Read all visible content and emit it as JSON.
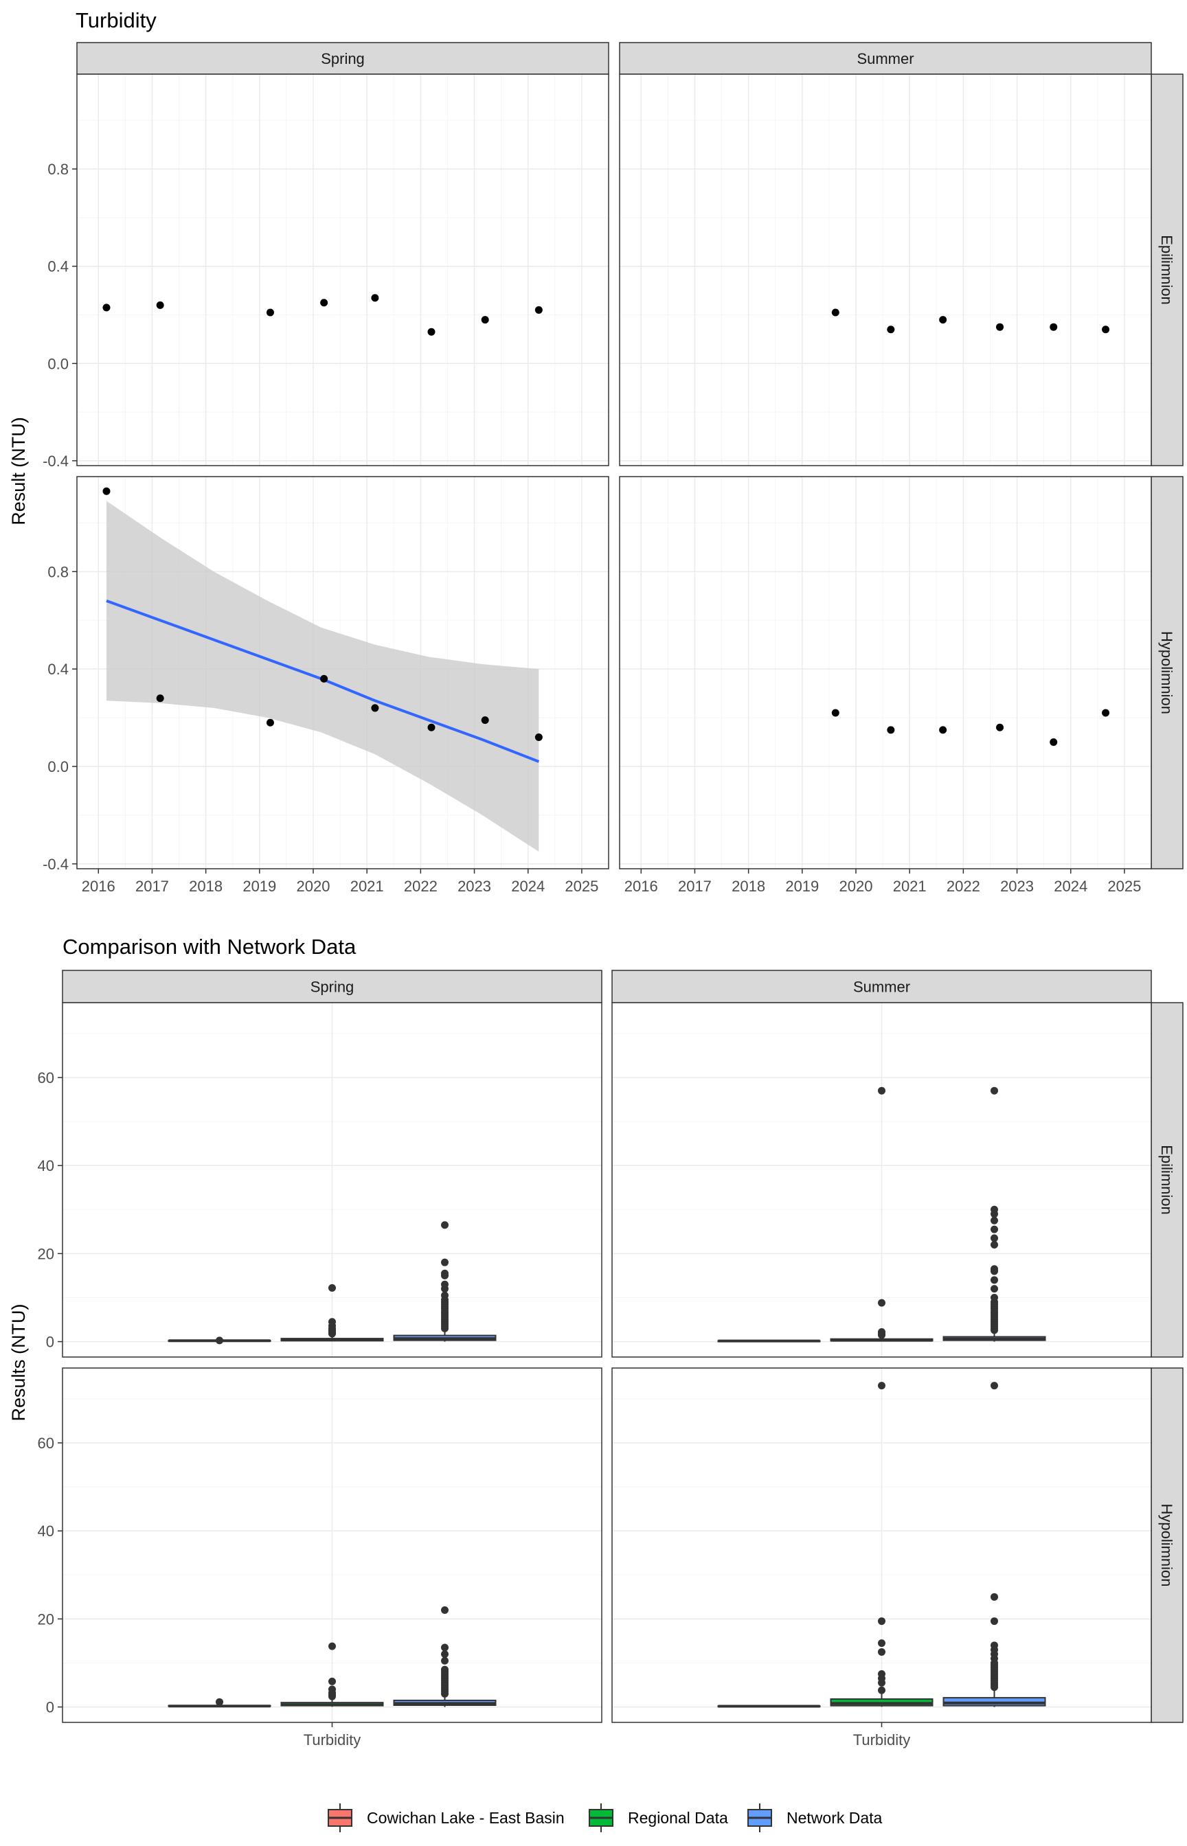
{
  "colors": {
    "strip": "#d9d9d9",
    "grid_major": "#ebebeb",
    "grid_minor": "#f5f5f5",
    "panel_border": "#333333",
    "point": "#000000",
    "trend_line": "#3366ff",
    "ribbon": "#cccccc",
    "cowichan": "#f8766d",
    "regional": "#00ba38",
    "network": "#619cff"
  },
  "chart_data": [
    {
      "type": "scatter",
      "title": "Turbidity",
      "ylabel": "Result (NTU)",
      "xlabel": "",
      "col_facets": [
        "Spring",
        "Summer"
      ],
      "row_facets": [
        "Epilimnion",
        "Hypolimnion"
      ],
      "xlim": [
        2015.6,
        2025.5
      ],
      "ylim": [
        -0.42,
        1.19
      ],
      "x_ticks": [
        2016,
        2017,
        2018,
        2019,
        2020,
        2021,
        2022,
        2023,
        2024,
        2025
      ],
      "y_ticks": [
        -0.4,
        0.0,
        0.4,
        0.8
      ],
      "y_tick_labels": [
        "-0.4",
        "0.0",
        "0.4",
        "0.8"
      ],
      "grid": true,
      "panels": [
        {
          "season": "Spring",
          "layer": "Epilimnion",
          "points": [
            [
              2016.15,
              0.23
            ],
            [
              2017.15,
              0.24
            ],
            [
              2019.2,
              0.21
            ],
            [
              2020.2,
              0.25
            ],
            [
              2021.15,
              0.27
            ],
            [
              2022.2,
              0.13
            ],
            [
              2023.2,
              0.18
            ],
            [
              2024.2,
              0.22
            ]
          ]
        },
        {
          "season": "Summer",
          "layer": "Epilimnion",
          "points": [
            [
              2019.62,
              0.21
            ],
            [
              2020.65,
              0.14
            ],
            [
              2021.62,
              0.18
            ],
            [
              2022.68,
              0.15
            ],
            [
              2023.68,
              0.15
            ],
            [
              2024.65,
              0.14
            ]
          ]
        },
        {
          "season": "Spring",
          "layer": "Hypolimnion",
          "points": [
            [
              2016.15,
              1.13
            ],
            [
              2017.15,
              0.28
            ],
            [
              2019.2,
              0.18
            ],
            [
              2020.2,
              0.36
            ],
            [
              2021.15,
              0.24
            ],
            [
              2022.2,
              0.16
            ],
            [
              2023.2,
              0.19
            ],
            [
              2024.2,
              0.12
            ]
          ],
          "trend": {
            "x": [
              2016.15,
              2017.15,
              2018.15,
              2019.15,
              2020.15,
              2021.15,
              2022.15,
              2023.15,
              2024.2
            ],
            "fit": [
              0.68,
              0.6,
              0.52,
              0.44,
              0.36,
              0.27,
              0.19,
              0.11,
              0.02
            ],
            "lower": [
              0.27,
              0.26,
              0.24,
              0.2,
              0.14,
              0.05,
              -0.07,
              -0.2,
              -0.35
            ],
            "upper": [
              1.09,
              0.94,
              0.8,
              0.68,
              0.57,
              0.5,
              0.45,
              0.42,
              0.4
            ]
          }
        },
        {
          "season": "Summer",
          "layer": "Hypolimnion",
          "points": [
            [
              2019.62,
              0.22
            ],
            [
              2020.65,
              0.15
            ],
            [
              2021.62,
              0.15
            ],
            [
              2022.68,
              0.16
            ],
            [
              2023.68,
              0.1
            ],
            [
              2024.65,
              0.22
            ]
          ]
        }
      ]
    },
    {
      "type": "box",
      "title": "Comparison with Network Data",
      "ylabel": "Results (NTU)",
      "xlabel": "",
      "category": "Turbidity",
      "col_facets": [
        "Spring",
        "Summer"
      ],
      "row_facets": [
        "Epilimnion",
        "Hypolimnion"
      ],
      "ylim": [
        -3.5,
        77
      ],
      "y_ticks": [
        0,
        20,
        40,
        60
      ],
      "y_tick_labels": [
        "0",
        "20",
        "40",
        "60"
      ],
      "grid": true,
      "legend": {
        "position": "bottom",
        "entries": [
          {
            "name": "Cowichan Lake - East Basin",
            "color_key": "cowichan"
          },
          {
            "name": "Regional Data",
            "color_key": "regional"
          },
          {
            "name": "Network Data",
            "color_key": "network"
          }
        ]
      },
      "panels": [
        {
          "season": "Spring",
          "layer": "Epilimnion",
          "boxes": [
            {
              "group": "Cowichan Lake - East Basin",
              "color_key": "cowichan",
              "q1": 0.14,
              "median": 0.2,
              "q3": 0.25,
              "whisker_low": 0.13,
              "whisker_high": 0.27,
              "outliers": [
                0.27
              ]
            },
            {
              "group": "Regional Data",
              "color_key": "regional",
              "q1": 0.2,
              "median": 0.4,
              "q3": 0.7,
              "whisker_low": 0.05,
              "whisker_high": 1.4,
              "outliers": [
                12.2,
                4.5,
                3.6,
                3.0,
                2.6,
                2.3,
                2.0,
                1.8
              ]
            },
            {
              "group": "Network Data",
              "color_key": "network",
              "q1": 0.3,
              "median": 0.7,
              "q3": 1.4,
              "whisker_low": 0.0,
              "whisker_high": 2.6,
              "outliers": [
                26.5,
                18.0,
                15.5,
                15.0,
                13.0,
                12.0,
                10.5,
                9.5,
                9.0,
                8.5,
                8.0,
                7.5,
                7.0,
                6.5,
                6.0,
                5.5,
                5.0,
                4.5,
                4.0,
                3.5,
                3.0
              ]
            }
          ]
        },
        {
          "season": "Summer",
          "layer": "Epilimnion",
          "boxes": [
            {
              "group": "Cowichan Lake - East Basin",
              "color_key": "cowichan",
              "q1": 0.14,
              "median": 0.15,
              "q3": 0.18,
              "whisker_low": 0.14,
              "whisker_high": 0.21,
              "outliers": []
            },
            {
              "group": "Regional Data",
              "color_key": "regional",
              "q1": 0.2,
              "median": 0.3,
              "q3": 0.6,
              "whisker_low": 0.05,
              "whisker_high": 1.2,
              "outliers": [
                57.0,
                8.8,
                2.2,
                1.8,
                1.5
              ]
            },
            {
              "group": "Network Data",
              "color_key": "network",
              "q1": 0.3,
              "median": 0.6,
              "q3": 1.1,
              "whisker_low": 0.0,
              "whisker_high": 2.3,
              "outliers": [
                57.0,
                30.0,
                29.0,
                27.5,
                25.5,
                23.5,
                22.0,
                16.5,
                16.0,
                14.0,
                12.0,
                10.0,
                9.0,
                8.5,
                8.0,
                7.5,
                7.0,
                6.5,
                6.0,
                5.5,
                5.0,
                4.5,
                4.0,
                3.5,
                3.0,
                2.6
              ]
            }
          ]
        },
        {
          "season": "Spring",
          "layer": "Hypolimnion",
          "boxes": [
            {
              "group": "Cowichan Lake - East Basin",
              "color_key": "cowichan",
              "q1": 0.16,
              "median": 0.2,
              "q3": 0.3,
              "whisker_low": 0.12,
              "whisker_high": 0.36,
              "outliers": [
                1.13
              ]
            },
            {
              "group": "Regional Data",
              "color_key": "regional",
              "q1": 0.3,
              "median": 0.5,
              "q3": 1.0,
              "whisker_low": 0.05,
              "whisker_high": 1.9,
              "outliers": [
                13.8,
                5.8,
                4.0,
                3.2,
                2.8,
                2.4
              ]
            },
            {
              "group": "Network Data",
              "color_key": "network",
              "q1": 0.4,
              "median": 0.8,
              "q3": 1.5,
              "whisker_low": 0.0,
              "whisker_high": 2.7,
              "outliers": [
                22.0,
                13.5,
                12.0,
                10.5,
                8.5,
                8.0,
                7.5,
                7.0,
                6.5,
                6.0,
                5.5,
                5.0,
                4.5,
                4.0,
                3.5,
                3.0
              ]
            }
          ]
        },
        {
          "season": "Summer",
          "layer": "Hypolimnion",
          "boxes": [
            {
              "group": "Cowichan Lake - East Basin",
              "color_key": "cowichan",
              "q1": 0.15,
              "median": 0.16,
              "q3": 0.22,
              "whisker_low": 0.1,
              "whisker_high": 0.22,
              "outliers": []
            },
            {
              "group": "Regional Data",
              "color_key": "regional",
              "q1": 0.3,
              "median": 0.8,
              "q3": 1.8,
              "whisker_low": 0.05,
              "whisker_high": 3.5,
              "outliers": [
                73.0,
                19.5,
                14.5,
                12.5,
                7.5,
                6.5,
                5.5,
                3.8
              ]
            },
            {
              "group": "Network Data",
              "color_key": "network",
              "q1": 0.3,
              "median": 0.9,
              "q3": 2.1,
              "whisker_low": 0.0,
              "whisker_high": 4.0,
              "outliers": [
                73.0,
                25.0,
                19.5,
                14.0,
                13.0,
                12.0,
                11.0,
                10.0,
                9.5,
                9.0,
                8.5,
                8.0,
                7.5,
                7.0,
                6.5,
                6.0,
                5.5,
                5.0,
                4.5
              ]
            }
          ]
        }
      ]
    }
  ]
}
